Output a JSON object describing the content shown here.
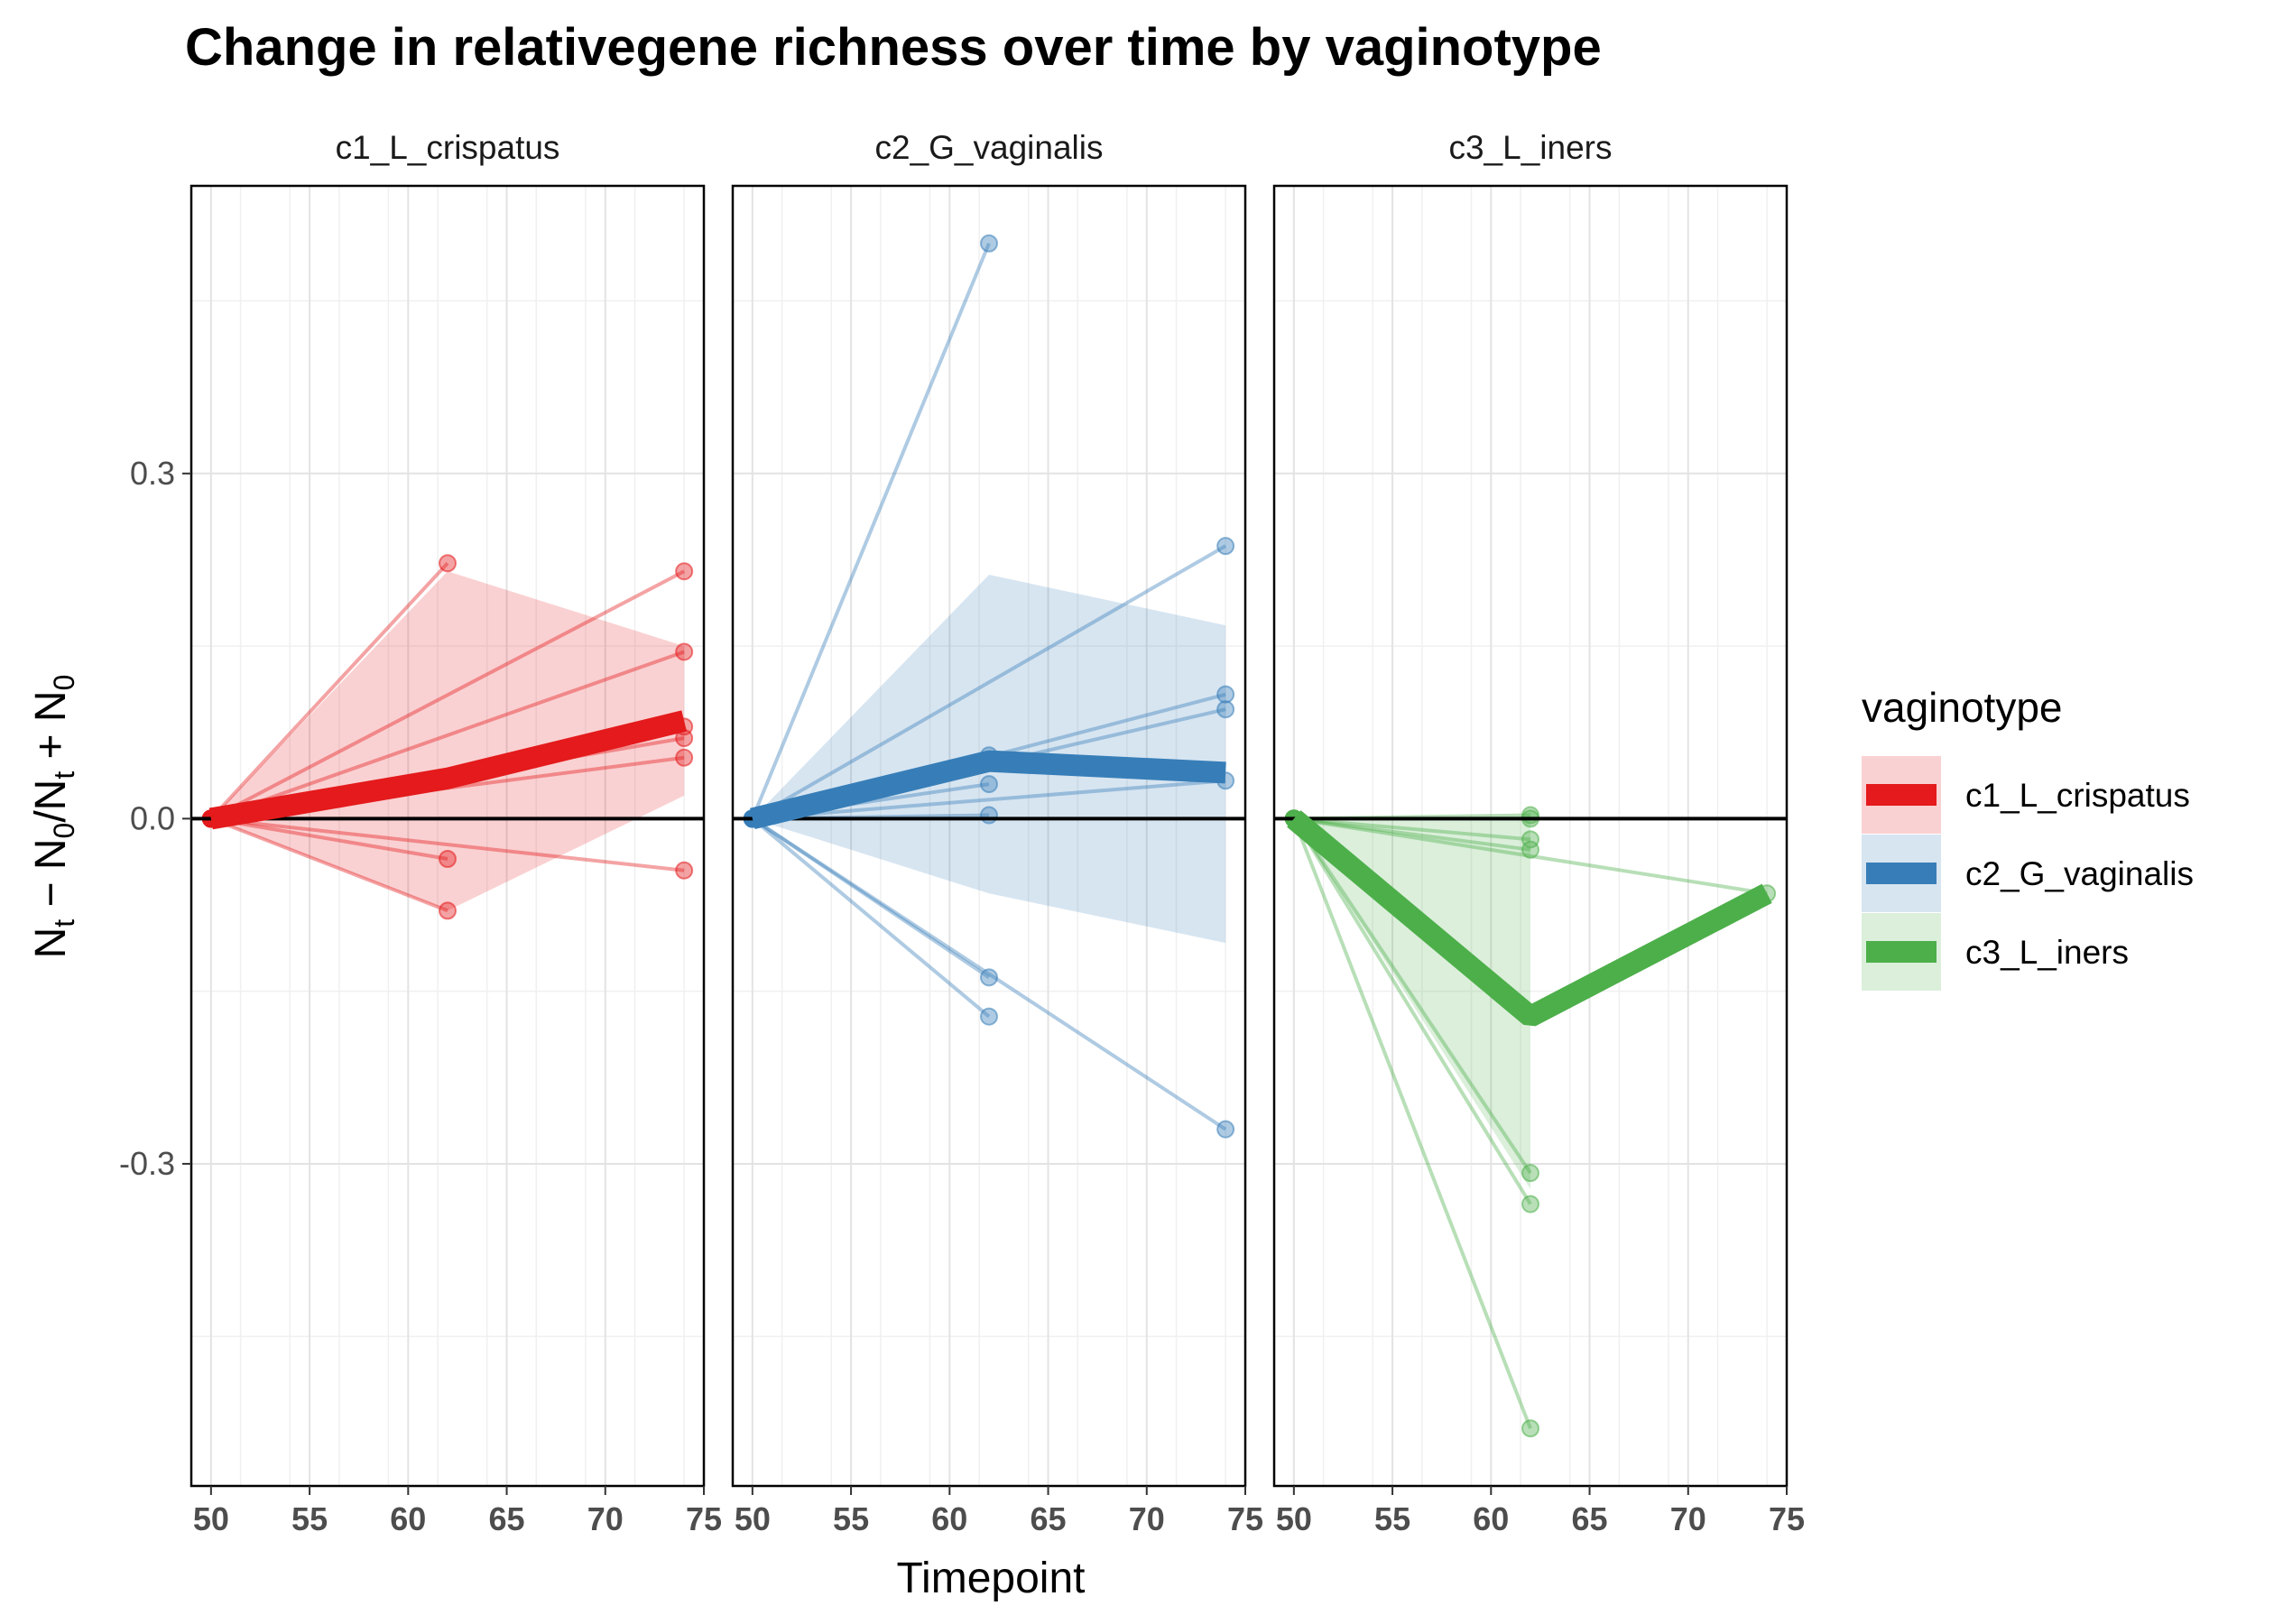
{
  "chart_data": {
    "type": "line",
    "title": "Change in relativegene richness over time by vaginotype",
    "xlabel": "Timepoint",
    "ylabel": "N_t − N_0/N_t + N_0",
    "ylabel_parts": {
      "main1": "N",
      "sub1": "t",
      "rest1": " − N",
      "sub2": "0",
      "rest2": "/N",
      "sub3": "t",
      "rest3": " + N",
      "sub4": "0"
    },
    "xlim": [
      49,
      75
    ],
    "ylim": [
      -0.58,
      0.55
    ],
    "x_ticks": [
      50,
      55,
      60,
      65,
      70,
      75
    ],
    "x_tick_labels": [
      "50",
      "55",
      "60",
      "65",
      "70",
      "75"
    ],
    "y_ticks": [
      -0.3,
      0.0,
      0.3
    ],
    "y_tick_labels": [
      "-0.3",
      "0.0",
      "0.3"
    ],
    "grid": true,
    "reference_line_y": 0,
    "legend": {
      "title": "vaginotype",
      "placement": "right",
      "entries": [
        "c1_L_crispatus",
        "c2_G_vaginalis",
        "c3_L_iners"
      ]
    },
    "colors": {
      "c1_L_crispatus": "#e41a1c",
      "c2_G_vaginalis": "#377eb8",
      "c3_L_iners": "#4daf4a"
    },
    "panels": [
      {
        "name": "c1_L_crispatus",
        "mean": {
          "x": [
            50,
            62,
            74
          ],
          "y": [
            0.0,
            0.035,
            0.085
          ]
        },
        "ribbon": {
          "x": [
            50,
            62,
            74
          ],
          "lower": [
            0.0,
            -0.08,
            0.02
          ],
          "upper": [
            0.0,
            0.215,
            0.15
          ]
        },
        "subjects": [
          {
            "x": [
              50,
              62
            ],
            "y": [
              0.0,
              0.222
            ]
          },
          {
            "x": [
              50,
              62
            ],
            "y": [
              0.0,
              -0.035
            ]
          },
          {
            "x": [
              50,
              62
            ],
            "y": [
              0.0,
              -0.08
            ]
          },
          {
            "x": [
              50,
              74
            ],
            "y": [
              0.0,
              0.215
            ]
          },
          {
            "x": [
              50,
              74
            ],
            "y": [
              0.0,
              0.145
            ]
          },
          {
            "x": [
              50,
              74
            ],
            "y": [
              0.0,
              0.08
            ]
          },
          {
            "x": [
              50,
              74
            ],
            "y": [
              0.0,
              0.07
            ]
          },
          {
            "x": [
              50,
              74
            ],
            "y": [
              0.0,
              0.053
            ]
          },
          {
            "x": [
              50,
              74
            ],
            "y": [
              0.0,
              -0.045
            ]
          }
        ]
      },
      {
        "name": "c2_G_vaginalis",
        "mean": {
          "x": [
            50,
            62,
            74
          ],
          "y": [
            0.0,
            0.05,
            0.04
          ]
        },
        "ribbon": {
          "x": [
            50,
            62,
            74
          ],
          "lower": [
            0.0,
            -0.065,
            -0.108
          ],
          "upper": [
            0.0,
            0.212,
            0.168
          ]
        },
        "subjects": [
          {
            "x": [
              50,
              62
            ],
            "y": [
              0.0,
              0.5
            ]
          },
          {
            "x": [
              50,
              62
            ],
            "y": [
              0.0,
              0.055
            ]
          },
          {
            "x": [
              50,
              62
            ],
            "y": [
              0.0,
              0.03
            ]
          },
          {
            "x": [
              50,
              62
            ],
            "y": [
              0.0,
              0.003
            ]
          },
          {
            "x": [
              50,
              62
            ],
            "y": [
              0.0,
              -0.138
            ]
          },
          {
            "x": [
              50,
              62
            ],
            "y": [
              0.0,
              -0.172
            ]
          },
          {
            "x": [
              50,
              74
            ],
            "y": [
              0.0,
              0.237
            ]
          },
          {
            "x": [
              50,
              74
            ],
            "y": [
              0.0,
              0.108
            ]
          },
          {
            "x": [
              50,
              74
            ],
            "y": [
              0.0,
              0.095
            ]
          },
          {
            "x": [
              50,
              74
            ],
            "y": [
              0.0,
              0.033
            ]
          },
          {
            "x": [
              50,
              74
            ],
            "y": [
              0.0,
              -0.27
            ]
          }
        ]
      },
      {
        "name": "c3_L_iners",
        "mean": {
          "x": [
            50,
            62,
            74
          ],
          "y": [
            0.0,
            -0.172,
            -0.065
          ]
        },
        "ribbon": {
          "x": [
            50,
            62
          ],
          "lower": [
            0.0,
            -0.322
          ],
          "upper": [
            0.0,
            0.0
          ]
        },
        "subjects": [
          {
            "x": [
              50,
              62
            ],
            "y": [
              0.0,
              0.003
            ]
          },
          {
            "x": [
              50,
              62
            ],
            "y": [
              0.0,
              0.0
            ]
          },
          {
            "x": [
              50,
              62
            ],
            "y": [
              0.0,
              -0.018
            ]
          },
          {
            "x": [
              50,
              62
            ],
            "y": [
              0.0,
              -0.027
            ]
          },
          {
            "x": [
              50,
              62
            ],
            "y": [
              0.0,
              -0.308
            ]
          },
          {
            "x": [
              50,
              62
            ],
            "y": [
              0.0,
              -0.335
            ]
          },
          {
            "x": [
              50,
              62
            ],
            "y": [
              0.0,
              -0.53
            ]
          },
          {
            "x": [
              50,
              74
            ],
            "y": [
              0.0,
              -0.065
            ]
          }
        ]
      }
    ]
  }
}
